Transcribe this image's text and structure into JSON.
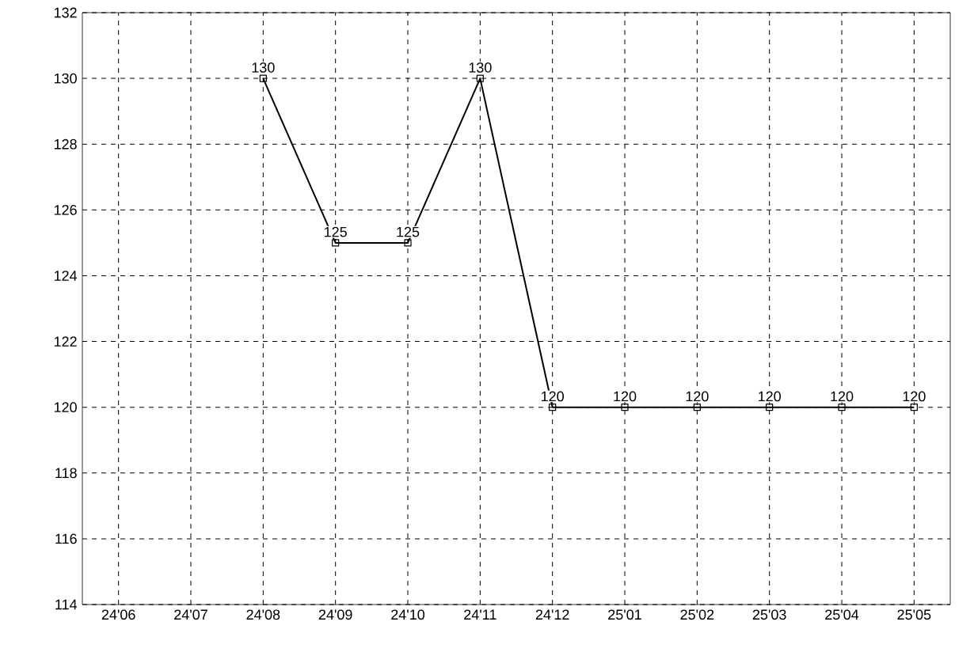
{
  "chart_data": {
    "type": "line",
    "categories": [
      "24'06",
      "24'07",
      "24'08",
      "24'09",
      "24'10",
      "24'11",
      "24'12",
      "25'01",
      "25'02",
      "25'03",
      "25'04",
      "25'05"
    ],
    "values": [
      null,
      null,
      130,
      125,
      125,
      130,
      120,
      120,
      120,
      120,
      120,
      120
    ],
    "color": "#000000",
    "ylim": [
      114,
      132
    ],
    "yticks": [
      114,
      116,
      118,
      120,
      122,
      124,
      126,
      128,
      130,
      132
    ],
    "grid": true,
    "marker": "square",
    "line_style": "solid",
    "data_labels": true
  }
}
